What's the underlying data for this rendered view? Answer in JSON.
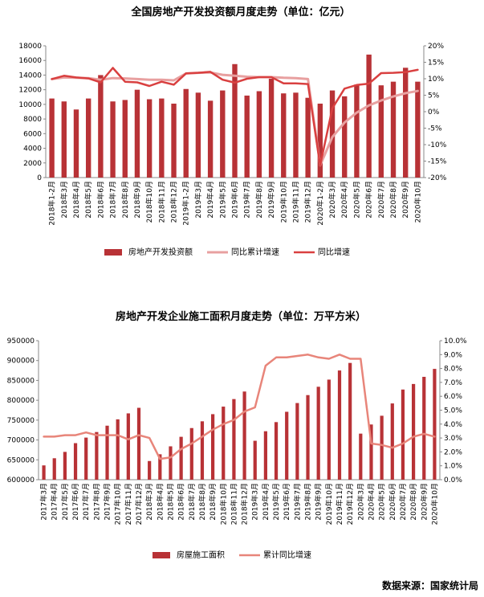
{
  "chart_data": [
    {
      "type": "bar",
      "title": "全国房地产开发投资额月度走势（单位：亿元）",
      "source": "数据来源：国家统计局",
      "categories": [
        "2018年1-2月",
        "2018年3月",
        "2018年4月",
        "2018年5月",
        "2018年6月",
        "2018年7月",
        "2018年8月",
        "2018年9月",
        "2018年10月",
        "2018年11月",
        "2018年12月",
        "2019年1-2月",
        "2019年3月",
        "2019年4月",
        "2019年5月",
        "2019年6月",
        "2019年7月",
        "2019年8月",
        "2019年9月",
        "2019年10月",
        "2019年11月",
        "2019年12月",
        "2020年1-2月",
        "2020年3月",
        "2020年4月",
        "2020年5月",
        "2020年6月",
        "2020年7月",
        "2020年8月",
        "2020年9月",
        "2020年10月"
      ],
      "y_left_ticks": [
        "0",
        "2000",
        "4000",
        "6000",
        "8000",
        "10000",
        "12000",
        "14000",
        "16000",
        "18000"
      ],
      "y_right_ticks": [
        "-20%",
        "-15%",
        "-10%",
        "-5%",
        "0%",
        "5%",
        "10%",
        "15%",
        "20%"
      ],
      "ylim_left": [
        0,
        18000
      ],
      "ylim_right": [
        -20,
        20
      ],
      "series": [
        {
          "name": "房地产开发投资额",
          "axis": "left",
          "kind": "bar",
          "color": "#b83236",
          "values": [
            10800,
            10400,
            9300,
            10800,
            14000,
            10400,
            10600,
            12000,
            10700,
            10800,
            10100,
            12100,
            11600,
            10500,
            11900,
            15500,
            11200,
            11800,
            13500,
            11500,
            11600,
            10900,
            10100,
            11900,
            11100,
            12700,
            16800,
            12600,
            13100,
            15000,
            13100
          ]
        },
        {
          "name": "同比累计增速",
          "axis": "right",
          "kind": "line",
          "color": "#e8a0a0",
          "values": [
            9.9,
            10.4,
            10.3,
            10.2,
            9.7,
            10.2,
            10.1,
            9.9,
            9.7,
            9.7,
            9.5,
            11.6,
            11.8,
            11.9,
            11.2,
            10.9,
            10.6,
            10.5,
            10.5,
            10.3,
            10.2,
            9.9,
            -16.3,
            -7.7,
            -3.3,
            -0.3,
            1.9,
            3.4,
            4.6,
            5.6,
            6.3
          ]
        },
        {
          "name": "同比增速",
          "axis": "right",
          "kind": "line",
          "color": "#d94040",
          "values": [
            9.9,
            10.9,
            10.4,
            10.1,
            8.9,
            13.3,
            9.1,
            8.9,
            7.8,
            9.1,
            8.2,
            11.6,
            11.8,
            12.1,
            9.7,
            8.8,
            10.0,
            10.5,
            10.5,
            8.6,
            8.6,
            8.4,
            -16.3,
            1.0,
            7.0,
            8.1,
            8.5,
            11.7,
            11.8,
            12.0,
            12.7
          ]
        }
      ]
    },
    {
      "type": "bar",
      "title": "房地产开发企业施工面积月度走势（单位：万平方米）",
      "source": "数据来源：国家统计局",
      "categories": [
        "2017年3月",
        "2017年4月",
        "2017年5月",
        "2017年6月",
        "2017年7月",
        "2017年8月",
        "2017年9月",
        "2017年10月",
        "2017年11月",
        "2017年12月",
        "2018年3月",
        "2018年4月",
        "2018年5月",
        "2018年6月",
        "2018年7月",
        "2018年8月",
        "2018年9月",
        "2018年10月",
        "2018年11月",
        "2018年12月",
        "2019年3月",
        "2019年4月",
        "2019年5月",
        "2019年6月",
        "2019年7月",
        "2019年8月",
        "2019年9月",
        "2019年10月",
        "2019年11月",
        "2019年12月",
        "2020年3月",
        "2020年4月",
        "2020年5月",
        "2020年6月",
        "2020年7月",
        "2020年8月",
        "2020年9月",
        "2020年10月"
      ],
      "y_left_ticks": [
        "600000",
        "650000",
        "700000",
        "750000",
        "800000",
        "850000",
        "900000",
        "950000"
      ],
      "y_right_ticks": [
        "0.0%",
        "1.0%",
        "2.0%",
        "3.0%",
        "4.0%",
        "5.0%",
        "6.0%",
        "7.0%",
        "8.0%",
        "9.0%",
        "10.0%"
      ],
      "ylim_left": [
        600000,
        950000
      ],
      "ylim_right": [
        0,
        10
      ],
      "series": [
        {
          "name": "房屋施工面积",
          "axis": "left",
          "kind": "bar",
          "color": "#b83236",
          "values": [
            636000,
            654000,
            670000,
            692000,
            706000,
            720000,
            736000,
            752000,
            767000,
            781000,
            647000,
            664000,
            684000,
            708000,
            730000,
            747000,
            765000,
            784000,
            803000,
            822000,
            698000,
            722000,
            745000,
            771000,
            793000,
            813000,
            834000,
            852000,
            875000,
            894000,
            716000,
            739000,
            761000,
            792000,
            827000,
            841000,
            859000,
            879000
          ]
        },
        {
          "name": "累计同比增速",
          "axis": "right",
          "kind": "line",
          "color": "#e8857a",
          "values": [
            3.1,
            3.1,
            3.2,
            3.2,
            3.4,
            3.2,
            3.2,
            3.2,
            2.9,
            3.2,
            3.0,
            1.5,
            1.6,
            2.2,
            2.6,
            3.1,
            3.6,
            4.0,
            4.3,
            4.9,
            5.2,
            8.2,
            8.8,
            8.8,
            8.9,
            9.0,
            8.8,
            8.7,
            9.0,
            8.7,
            8.7,
            2.6,
            2.5,
            2.3,
            2.6,
            3.1,
            3.3,
            3.1
          ]
        }
      ]
    }
  ]
}
